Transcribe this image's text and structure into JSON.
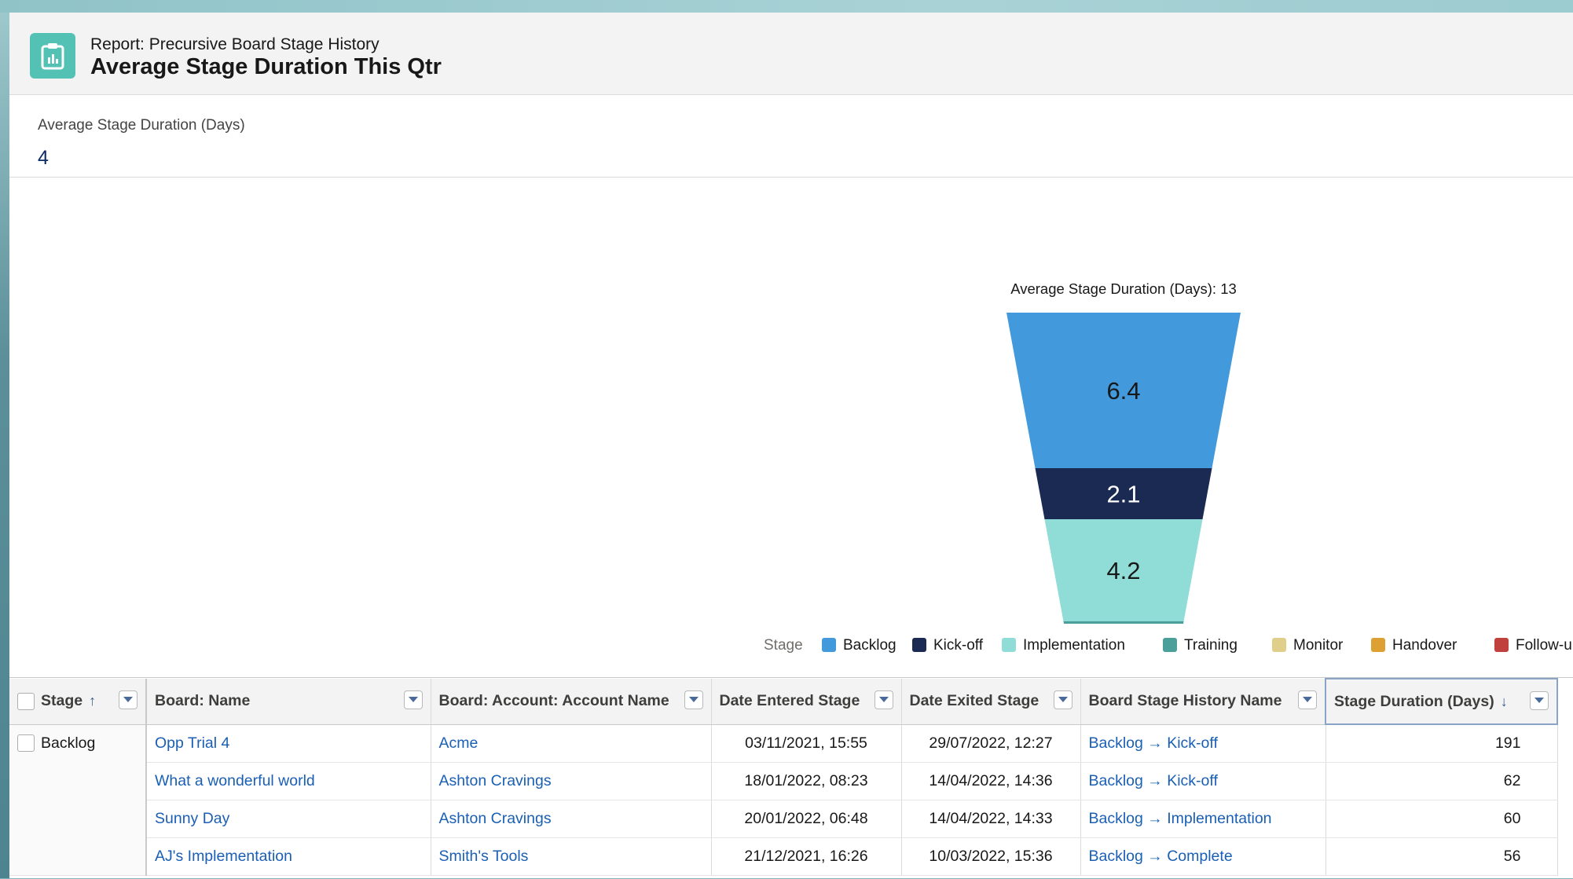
{
  "header": {
    "subtitle": "Report: Precursive Board Stage History",
    "title": "Average Stage Duration This Qtr"
  },
  "summary": {
    "label": "Average Stage Duration (Days)",
    "value": "4"
  },
  "chart_data": {
    "type": "funnel",
    "title": "Average Stage Duration (Days): 13",
    "segments": [
      {
        "stage": "Backlog",
        "value": 6.4,
        "label": "6.4",
        "color": "#4299dc"
      },
      {
        "stage": "Kick-off",
        "value": 2.1,
        "label": "2.1",
        "color": "#1b2a52"
      },
      {
        "stage": "Implementation",
        "value": 4.2,
        "label": "4.2",
        "color": "#8fddd6"
      },
      {
        "stage": "Training",
        "value": 0.1,
        "label": "",
        "color": "#4a9f9a"
      }
    ],
    "legend_title": "Stage",
    "legend": [
      {
        "name": "Backlog",
        "color": "#4299dc"
      },
      {
        "name": "Kick-off",
        "color": "#1b2a52"
      },
      {
        "name": "Implementation",
        "color": "#8fddd6"
      },
      {
        "name": "Training",
        "color": "#4a9f9a"
      },
      {
        "name": "Monitor",
        "color": "#e0cf8a"
      },
      {
        "name": "Handover",
        "color": "#dda033"
      },
      {
        "name": "Follow-up",
        "color": "#c0403d"
      }
    ],
    "legend_position": "bottom"
  },
  "table": {
    "columns": [
      "Stage",
      "Board: Name",
      "Board: Account: Account Name",
      "Date Entered Stage",
      "Date Exited Stage",
      "Board Stage History Name",
      "Stage Duration (Days)"
    ],
    "group": "Backlog",
    "rows": [
      {
        "name": "Opp Trial 4",
        "account": "Acme",
        "entered": "03/11/2021, 15:55",
        "exited": "29/07/2022, 12:27",
        "history": "Backlog → Kick-off",
        "duration": "191"
      },
      {
        "name": "What a wonderful world",
        "account": "Ashton Cravings",
        "entered": "18/01/2022, 08:23",
        "exited": "14/04/2022, 14:36",
        "history": "Backlog → Kick-off",
        "duration": "62"
      },
      {
        "name": "Sunny Day",
        "account": "Ashton Cravings",
        "entered": "20/01/2022, 06:48",
        "exited": "14/04/2022, 14:33",
        "history": "Backlog → Implementation",
        "duration": "60"
      },
      {
        "name": "AJ's Implementation",
        "account": "Smith's Tools",
        "entered": "21/12/2021, 16:26",
        "exited": "10/03/2022, 15:36",
        "history": "Backlog → Complete",
        "duration": "56"
      }
    ]
  }
}
